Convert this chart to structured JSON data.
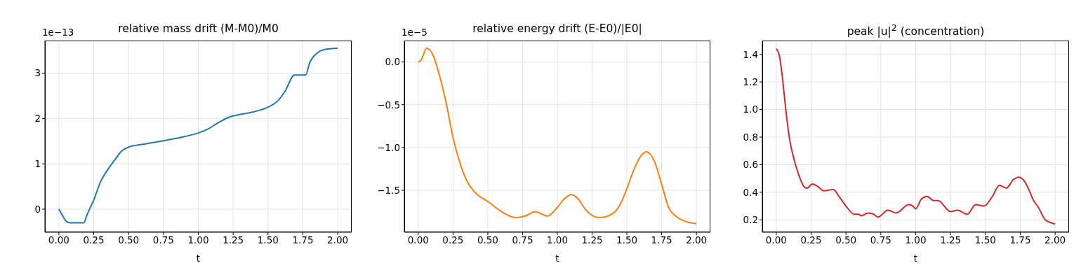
{
  "chart_data": [
    {
      "type": "line",
      "title": "relative mass drift  (M-M0)/M0",
      "xlabel": "t",
      "annotations": [
        "1e−13"
      ],
      "grid": true,
      "marker": "none",
      "x": [
        0,
        0.03,
        0.05,
        0.08,
        0.18,
        0.2,
        0.25,
        0.3,
        0.35,
        0.4,
        0.45,
        0.5,
        0.6,
        0.75,
        0.9,
        1.0,
        1.07,
        1.15,
        1.22,
        1.3,
        1.4,
        1.5,
        1.57,
        1.62,
        1.69,
        1.77,
        1.8,
        1.85,
        1.9,
        2.0
      ],
      "series": [
        {
          "color": "#1f77b4",
          "values": [
            0,
            -0.16,
            -0.26,
            -0.3,
            -0.3,
            -0.14,
            0.2,
            0.61,
            0.87,
            1.08,
            1.28,
            1.37,
            1.43,
            1.51,
            1.6,
            1.68,
            1.77,
            1.92,
            2.03,
            2.09,
            2.15,
            2.25,
            2.39,
            2.59,
            2.96,
            2.96,
            3.24,
            3.44,
            3.52,
            3.55
          ]
        }
      ],
      "xlim": [
        -0.1,
        2.1
      ],
      "ylim": [
        -0.51,
        3.72
      ],
      "xticks": [
        {
          "value": 0,
          "label": "0.00"
        },
        {
          "value": 0.25,
          "label": "0.25"
        },
        {
          "value": 0.5,
          "label": "0.50"
        },
        {
          "value": 0.75,
          "label": "0.75"
        },
        {
          "value": 1,
          "label": "1.00"
        },
        {
          "value": 1.25,
          "label": "1.25"
        },
        {
          "value": 1.5,
          "label": "1.50"
        },
        {
          "value": 1.75,
          "label": "1.75"
        },
        {
          "value": 2,
          "label": "2.00"
        }
      ],
      "yticks": [
        0,
        1,
        2,
        3
      ]
    },
    {
      "type": "line",
      "title": "relative energy drift  (E-E0)/|E0|",
      "xlabel": "t",
      "annotations": [
        "1e−5"
      ],
      "grid": true,
      "marker": "none",
      "x": [
        0,
        0.02,
        0.06,
        0.1,
        0.15,
        0.2,
        0.25,
        0.3,
        0.35,
        0.4,
        0.5,
        0.6,
        0.7,
        0.77,
        0.84,
        0.93,
        1.0,
        1.05,
        1.1,
        1.15,
        1.2,
        1.3,
        1.4,
        1.45,
        1.5,
        1.55,
        1.6,
        1.64,
        1.7,
        1.75,
        1.8,
        1.85,
        1.9,
        2.0
      ],
      "series": [
        {
          "color": "#ff7f0e",
          "values": [
            0,
            0.02,
            0.16,
            0.1,
            -0.14,
            -0.47,
            -0.88,
            -1.18,
            -1.39,
            -1.51,
            -1.63,
            -1.75,
            -1.82,
            -1.8,
            -1.75,
            -1.8,
            -1.7,
            -1.6,
            -1.55,
            -1.6,
            -1.72,
            -1.82,
            -1.77,
            -1.67,
            -1.48,
            -1.26,
            -1.1,
            -1.05,
            -1.17,
            -1.43,
            -1.7,
            -1.8,
            -1.85,
            -1.89
          ]
        }
      ],
      "xlim": [
        -0.1,
        2.1
      ],
      "ylim": [
        -1.99,
        0.25
      ],
      "xticks": [
        {
          "value": 0,
          "label": "0.00"
        },
        {
          "value": 0.25,
          "label": "0.25"
        },
        {
          "value": 0.5,
          "label": "0.50"
        },
        {
          "value": 0.75,
          "label": "0.75"
        },
        {
          "value": 1,
          "label": "1.00"
        },
        {
          "value": 1.25,
          "label": "1.25"
        },
        {
          "value": 1.5,
          "label": "1.50"
        },
        {
          "value": 1.75,
          "label": "1.75"
        },
        {
          "value": 2,
          "label": "2.00"
        }
      ],
      "yticks": [
        {
          "value": 0,
          "label": "0.0"
        },
        {
          "value": -0.5,
          "label": "−0.5"
        },
        {
          "value": -1,
          "label": "−1.0"
        },
        {
          "value": -1.5,
          "label": "−1.5"
        }
      ]
    },
    {
      "type": "line",
      "title": "peak |u|$^{2}$  (concentration)",
      "xlabel": "t",
      "grid": true,
      "marker": "none",
      "x": [
        0,
        0.02,
        0.04,
        0.06,
        0.08,
        0.1,
        0.13,
        0.16,
        0.2,
        0.22,
        0.26,
        0.3,
        0.34,
        0.41,
        0.45,
        0.5,
        0.56,
        0.59,
        0.61,
        0.66,
        0.7,
        0.73,
        0.8,
        0.86,
        0.95,
        0.98,
        1.0,
        1.04,
        1.08,
        1.13,
        1.16,
        1.25,
        1.3,
        1.37,
        1.43,
        1.49,
        1.55,
        1.6,
        1.65,
        1.7,
        1.74,
        1.78,
        1.82,
        1.84,
        1.88,
        1.93,
        2.0
      ],
      "series": [
        {
          "color": "#d62728",
          "values": [
            1.44,
            1.4,
            1.27,
            1.08,
            0.9,
            0.76,
            0.63,
            0.53,
            0.44,
            0.43,
            0.46,
            0.44,
            0.41,
            0.42,
            0.37,
            0.3,
            0.24,
            0.24,
            0.23,
            0.25,
            0.24,
            0.22,
            0.27,
            0.25,
            0.31,
            0.3,
            0.28,
            0.35,
            0.37,
            0.34,
            0.34,
            0.26,
            0.27,
            0.24,
            0.31,
            0.3,
            0.37,
            0.45,
            0.43,
            0.49,
            0.51,
            0.48,
            0.4,
            0.35,
            0.29,
            0.2,
            0.17
          ]
        }
      ],
      "xlim": [
        -0.1,
        2.1
      ],
      "ylim": [
        0.11,
        1.5
      ],
      "xticks": [
        {
          "value": 0,
          "label": "0.00"
        },
        {
          "value": 0.25,
          "label": "0.25"
        },
        {
          "value": 0.5,
          "label": "0.50"
        },
        {
          "value": 0.75,
          "label": "0.75"
        },
        {
          "value": 1,
          "label": "1.00"
        },
        {
          "value": 1.25,
          "label": "1.25"
        },
        {
          "value": 1.5,
          "label": "1.50"
        },
        {
          "value": 1.75,
          "label": "1.75"
        },
        {
          "value": 2,
          "label": "2.00"
        }
      ],
      "yticks": [
        {
          "value": 0.2,
          "label": "0.2"
        },
        {
          "value": 0.4,
          "label": "0.4"
        },
        {
          "value": 0.6,
          "label": "0.6"
        },
        {
          "value": 0.8,
          "label": "0.8"
        },
        {
          "value": 1,
          "label": "1.0"
        },
        {
          "value": 1.2,
          "label": "1.2"
        },
        {
          "value": 1.4,
          "label": "1.4"
        }
      ]
    }
  ]
}
